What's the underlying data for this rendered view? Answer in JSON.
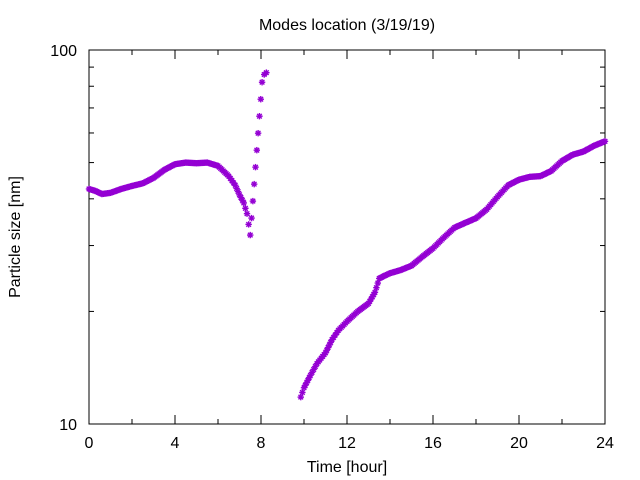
{
  "chart_data": {
    "type": "scatter",
    "title": "Modes location (3/19/19)",
    "xlabel": "Time [hour]",
    "ylabel": "Particle size [nm]",
    "xlim": [
      0,
      24
    ],
    "ylim": [
      10,
      100
    ],
    "yscale": "log",
    "grid": false,
    "legend": "none",
    "marker_color": "#9400d3",
    "x_ticks": [
      0,
      4,
      8,
      12,
      16,
      20,
      24
    ],
    "x_tick_labels": [
      "0",
      "4",
      "8",
      "12",
      "16",
      "20",
      "24"
    ],
    "y_tick_labels": [
      "10",
      "100"
    ],
    "series": [
      {
        "points": [
          [
            0.0,
            42.5
          ],
          [
            0.3,
            42.0
          ],
          [
            0.6,
            41.2
          ],
          [
            1.0,
            41.5
          ],
          [
            1.5,
            42.5
          ],
          [
            2.0,
            43.3
          ],
          [
            2.5,
            44.0
          ],
          [
            3.0,
            45.5
          ],
          [
            3.5,
            47.8
          ],
          [
            4.0,
            49.5
          ],
          [
            4.5,
            50.0
          ],
          [
            5.0,
            49.8
          ],
          [
            5.5,
            50.0
          ],
          [
            6.0,
            49.0
          ],
          [
            6.5,
            46.0
          ],
          [
            6.8,
            43.5
          ],
          [
            7.0,
            41.0
          ],
          [
            7.2,
            39.0
          ],
          [
            7.35,
            36.5
          ],
          [
            7.5,
            32.0
          ],
          [
            8.05,
            82.0
          ],
          [
            8.15,
            86.0
          ],
          [
            8.25,
            87.0
          ],
          [
            9.85,
            11.8
          ],
          [
            10.0,
            12.5
          ],
          [
            10.3,
            13.5
          ],
          [
            10.6,
            14.5
          ],
          [
            11.0,
            15.5
          ],
          [
            11.3,
            16.8
          ],
          [
            11.6,
            17.8
          ],
          [
            12.0,
            18.8
          ],
          [
            12.5,
            20.0
          ],
          [
            13.0,
            21.0
          ],
          [
            13.3,
            22.5
          ],
          [
            13.5,
            24.5
          ],
          [
            13.8,
            25.0
          ],
          [
            14.0,
            25.3
          ],
          [
            14.5,
            25.8
          ],
          [
            15.0,
            26.5
          ],
          [
            15.5,
            28.0
          ],
          [
            16.0,
            29.5
          ],
          [
            16.5,
            31.5
          ],
          [
            17.0,
            33.5
          ],
          [
            17.5,
            34.5
          ],
          [
            18.0,
            35.5
          ],
          [
            18.5,
            37.5
          ],
          [
            19.0,
            40.5
          ],
          [
            19.5,
            43.5
          ],
          [
            20.0,
            45.0
          ],
          [
            20.5,
            45.8
          ],
          [
            21.0,
            46.0
          ],
          [
            21.5,
            47.5
          ],
          [
            22.0,
            50.5
          ],
          [
            22.5,
            52.5
          ],
          [
            23.0,
            53.5
          ],
          [
            23.5,
            55.5
          ],
          [
            24.0,
            57.0
          ]
        ]
      }
    ]
  }
}
